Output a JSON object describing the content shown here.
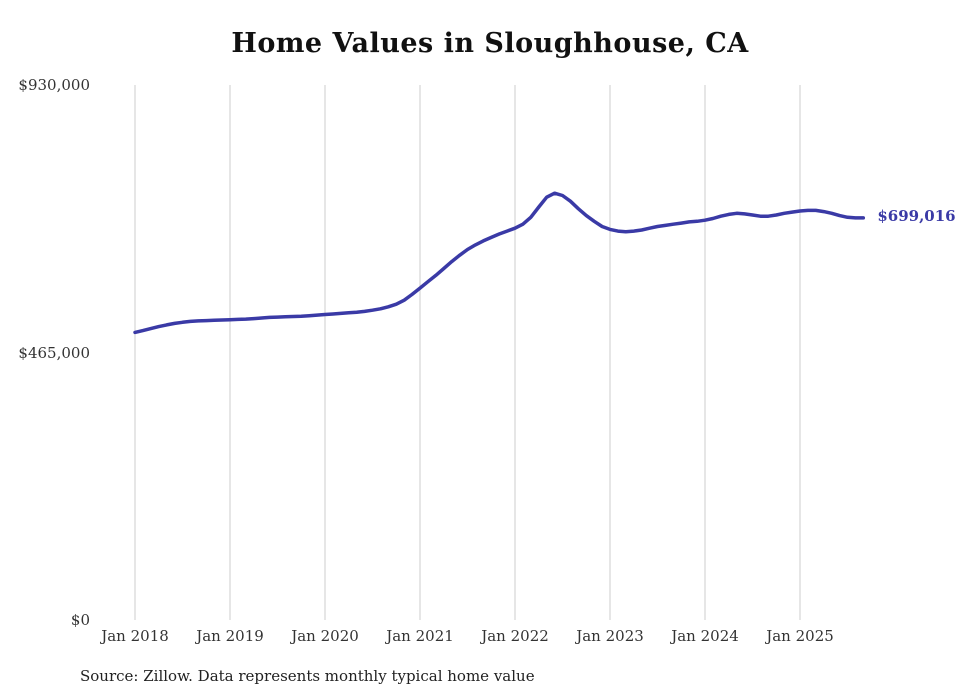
{
  "title": "Home Values in Sloughhouse, CA",
  "source_note": "Source: Zillow. Data represents monthly typical home value",
  "latest_value_label": "$699,016",
  "colors": {
    "line": "#3a3aa6",
    "latest_label": "#3a3aa6",
    "grid": "#cccccc",
    "axis_text": "#333333"
  },
  "chart_data": {
    "type": "line",
    "title": "Home Values in Sloughhouse, CA",
    "xlabel": "",
    "ylabel": "",
    "ylim": [
      0,
      930000
    ],
    "grid": "vertical-only",
    "legend": "none",
    "y_ticks": [
      {
        "label": "$930,000",
        "value": 930000
      },
      {
        "label": "$465,000",
        "value": 465000
      },
      {
        "label": "$0",
        "value": 0
      }
    ],
    "x_ticks": [
      "Jan 2018",
      "Jan 2019",
      "Jan 2020",
      "Jan 2021",
      "Jan 2022",
      "Jan 2023",
      "Jan 2024",
      "Jan 2025"
    ],
    "x": [
      "2018-01",
      "2018-02",
      "2018-03",
      "2018-04",
      "2018-05",
      "2018-06",
      "2018-07",
      "2018-08",
      "2018-09",
      "2018-10",
      "2018-11",
      "2018-12",
      "2019-01",
      "2019-02",
      "2019-03",
      "2019-04",
      "2019-05",
      "2019-06",
      "2019-07",
      "2019-08",
      "2019-09",
      "2019-10",
      "2019-11",
      "2019-12",
      "2020-01",
      "2020-02",
      "2020-03",
      "2020-04",
      "2020-05",
      "2020-06",
      "2020-07",
      "2020-08",
      "2020-09",
      "2020-10",
      "2020-11",
      "2020-12",
      "2021-01",
      "2021-02",
      "2021-03",
      "2021-04",
      "2021-05",
      "2021-06",
      "2021-07",
      "2021-08",
      "2021-09",
      "2021-10",
      "2021-11",
      "2021-12",
      "2022-01",
      "2022-02",
      "2022-03",
      "2022-04",
      "2022-05",
      "2022-06",
      "2022-07",
      "2022-08",
      "2022-09",
      "2022-10",
      "2022-11",
      "2022-12",
      "2023-01",
      "2023-02",
      "2023-03",
      "2023-04",
      "2023-05",
      "2023-06",
      "2023-07",
      "2023-08",
      "2023-09",
      "2023-10",
      "2023-11",
      "2023-12",
      "2024-01",
      "2024-02",
      "2024-03",
      "2024-04",
      "2024-05",
      "2024-06",
      "2024-07",
      "2024-08",
      "2024-09",
      "2024-10",
      "2024-11",
      "2024-12",
      "2025-01",
      "2025-02",
      "2025-03",
      "2025-04",
      "2025-05",
      "2025-06",
      "2025-07",
      "2025-08",
      "2025-09"
    ],
    "values": [
      500000,
      503000,
      506500,
      510000,
      513000,
      515500,
      517500,
      519000,
      520000,
      520500,
      521000,
      521500,
      522000,
      522500,
      523000,
      524000,
      525000,
      526000,
      526500,
      527000,
      527500,
      528000,
      529000,
      530000,
      531000,
      532000,
      533000,
      534000,
      535000,
      536500,
      538500,
      541000,
      544500,
      549000,
      556000,
      566000,
      577000,
      588000,
      599000,
      611000,
      623000,
      634000,
      644000,
      652000,
      659000,
      665000,
      671000,
      676000,
      681000,
      688000,
      700000,
      718000,
      735000,
      742000,
      738000,
      728000,
      715000,
      703000,
      693000,
      684000,
      679000,
      676000,
      675000,
      676000,
      678000,
      681000,
      684000,
      686000,
      688000,
      690000,
      692000,
      693000,
      695000,
      698000,
      702000,
      705000,
      707000,
      706000,
      704000,
      702000,
      702000,
      704000,
      707000,
      709000,
      711000,
      712000,
      712000,
      710000,
      707000,
      703000,
      700000,
      699000,
      699016
    ],
    "latest_value": 699016,
    "series_name": "Typical home value"
  }
}
